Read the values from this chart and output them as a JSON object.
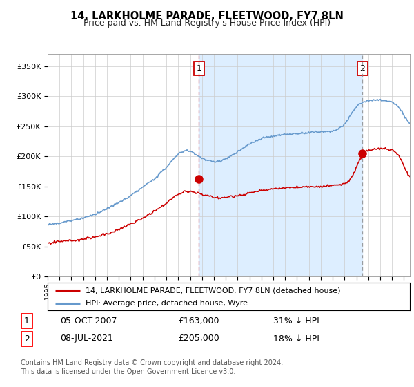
{
  "title": "14, LARKHOLME PARADE, FLEETWOOD, FY7 8LN",
  "subtitle": "Price paid vs. HM Land Registry's House Price Index (HPI)",
  "legend_line1": "14, LARKHOLME PARADE, FLEETWOOD, FY7 8LN (detached house)",
  "legend_line2": "HPI: Average price, detached house, Wyre",
  "sale1_label": "1",
  "sale1_date": "05-OCT-2007",
  "sale1_price": "£163,000",
  "sale1_pct": "31% ↓ HPI",
  "sale2_label": "2",
  "sale2_date": "08-JUL-2021",
  "sale2_price": "£205,000",
  "sale2_pct": "18% ↓ HPI",
  "sale1_date_num": 2007.75,
  "sale1_price_val": 163000,
  "sale2_date_num": 2021.5,
  "sale2_price_val": 205000,
  "ylim": [
    0,
    370000
  ],
  "xlim_start": 1995,
  "xlim_end": 2025.5,
  "price_line_color": "#cc0000",
  "hpi_line_color": "#6699cc",
  "shade_color": "#ddeeff",
  "footnote1": "Contains HM Land Registry data © Crown copyright and database right 2024.",
  "footnote2": "This data is licensed under the Open Government Licence v3.0.",
  "background_color": "#ffffff",
  "plot_bg_color": "#ffffff"
}
